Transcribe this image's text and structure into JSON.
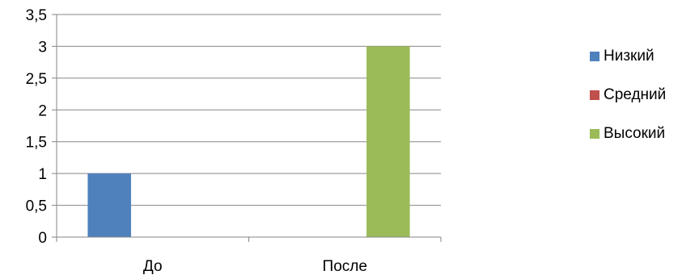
{
  "chart_data": {
    "type": "bar",
    "categories": [
      "До",
      "После"
    ],
    "series": [
      {
        "name": "Низкий",
        "values": [
          1,
          0
        ],
        "color": "#4f81bd"
      },
      {
        "name": "Средний",
        "values": [
          0,
          0
        ],
        "color": "#c0504d"
      },
      {
        "name": "Высокий",
        "values": [
          0,
          3
        ],
        "color": "#9bbb59"
      }
    ],
    "y_ticks": [
      "0",
      "0,5",
      "1",
      "1,5",
      "2",
      "2,5",
      "3",
      "3,5"
    ],
    "ylim": [
      0,
      3.5
    ],
    "grid": true,
    "legend": "right",
    "title": "",
    "xlabel": "",
    "ylabel": ""
  }
}
